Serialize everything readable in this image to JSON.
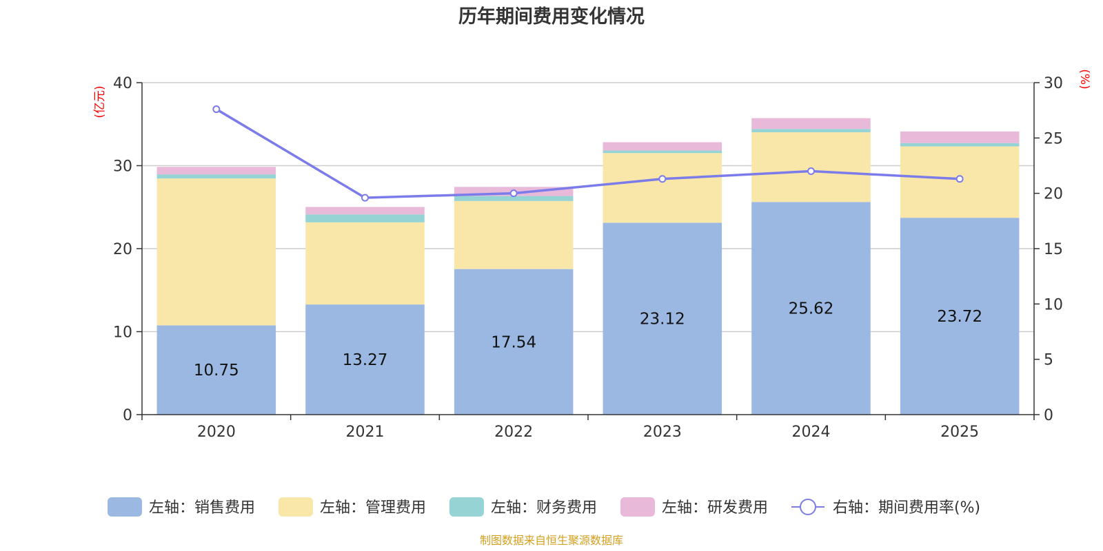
{
  "chart_data": {
    "type": "bar",
    "stacked": true,
    "title": "历年期间费用变化情况",
    "categories": [
      "2020",
      "2021",
      "2022",
      "2023",
      "2024",
      "2025"
    ],
    "left_unit": "(亿元)",
    "right_unit": "(%)",
    "ylim_left": [
      0,
      40
    ],
    "yticks_left": [
      "0",
      "10",
      "20",
      "30",
      "40"
    ],
    "ylim_right": [
      0,
      30
    ],
    "yticks_right": [
      "0",
      "5",
      "10",
      "15",
      "20",
      "25",
      "30"
    ],
    "series": [
      {
        "name": "左轴：销售费用",
        "axis": "left",
        "color": "#9bb8e2",
        "values": [
          10.75,
          13.27,
          17.54,
          23.12,
          25.62,
          23.72
        ],
        "labels": [
          "10.75",
          "13.27",
          "17.54",
          "23.12",
          "25.62",
          "23.72"
        ]
      },
      {
        "name": "左轴：管理费用",
        "axis": "left",
        "color": "#f8e7a8",
        "values": [
          17.7,
          9.9,
          8.2,
          8.4,
          8.4,
          8.6
        ]
      },
      {
        "name": "左轴：财务费用",
        "axis": "left",
        "color": "#95d3d4",
        "values": [
          0.5,
          0.95,
          0.6,
          0.3,
          0.4,
          0.4
        ]
      },
      {
        "name": "左轴：研发费用",
        "axis": "left",
        "color": "#e8b9d9",
        "values": [
          0.9,
          0.9,
          1.1,
          1.0,
          1.3,
          1.4
        ]
      },
      {
        "name": "右轴：期间费用率(%)",
        "axis": "right",
        "type": "line",
        "color": "#7b7bea",
        "values": [
          27.6,
          19.6,
          20.0,
          21.3,
          22.0,
          21.3
        ]
      }
    ],
    "legend_position": "bottom",
    "grid": true
  },
  "source": "制图数据来自恒生聚源数据库"
}
